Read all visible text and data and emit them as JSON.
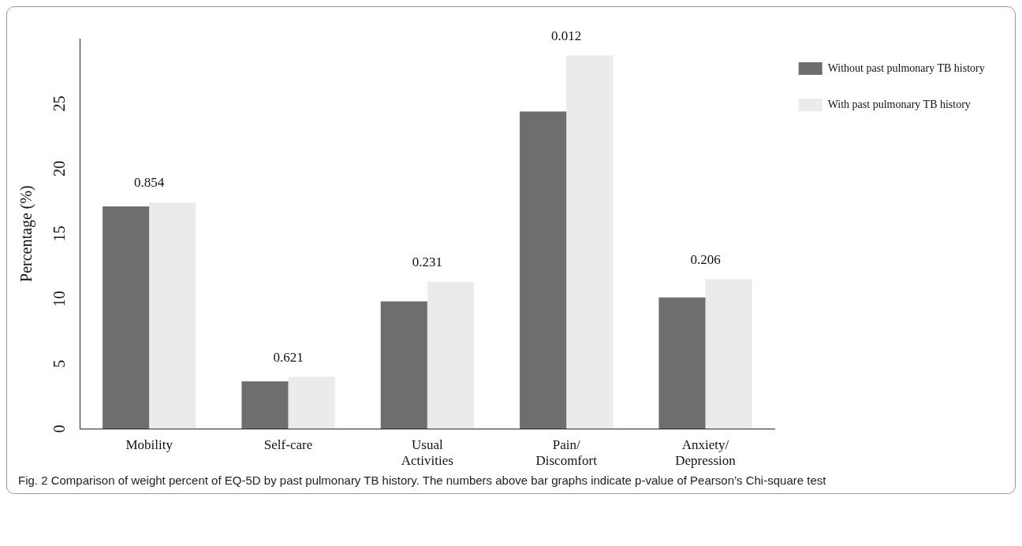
{
  "chart_data": {
    "type": "bar",
    "ylabel": "Percentage (%)",
    "categories": [
      "Mobility",
      "Self-care",
      "Usual\nActivities",
      "Pain/\nDiscomfort",
      "Anxiety/\nDepression"
    ],
    "series": [
      {
        "name": "Without past pulmonary TB history",
        "color": "#6e6e6c",
        "values": [
          17.1,
          3.65,
          9.8,
          24.4,
          10.1
        ]
      },
      {
        "name": "With past pulmonary TB history",
        "color": "#ebebeb",
        "values": [
          17.4,
          4.0,
          11.3,
          28.7,
          11.5
        ]
      }
    ],
    "ylim": [
      0,
      30
    ],
    "yticks": [
      0,
      5,
      10,
      15,
      20,
      25
    ],
    "grid": false,
    "legend": "top right",
    "annotations": [
      {
        "text": "0.854",
        "x": "Mobility",
        "y": 17.4
      },
      {
        "text": "0.621",
        "x": "Self-care",
        "y": 4.0
      },
      {
        "text": "0.231",
        "x": "Usual\nActivities",
        "y": 11.3
      },
      {
        "text": "0.012",
        "x": "Pain/\nDiscomfort",
        "y": 28.7
      },
      {
        "text": "0.206",
        "x": "Anxiety/\nDepression",
        "y": 11.5
      },
      "Fig. 2  Comparison of weight percent of EQ-5D by past pulmonary TB history. The numbers above bar graphs indicate p-value of Pearson’s Chi-square test"
    ]
  }
}
